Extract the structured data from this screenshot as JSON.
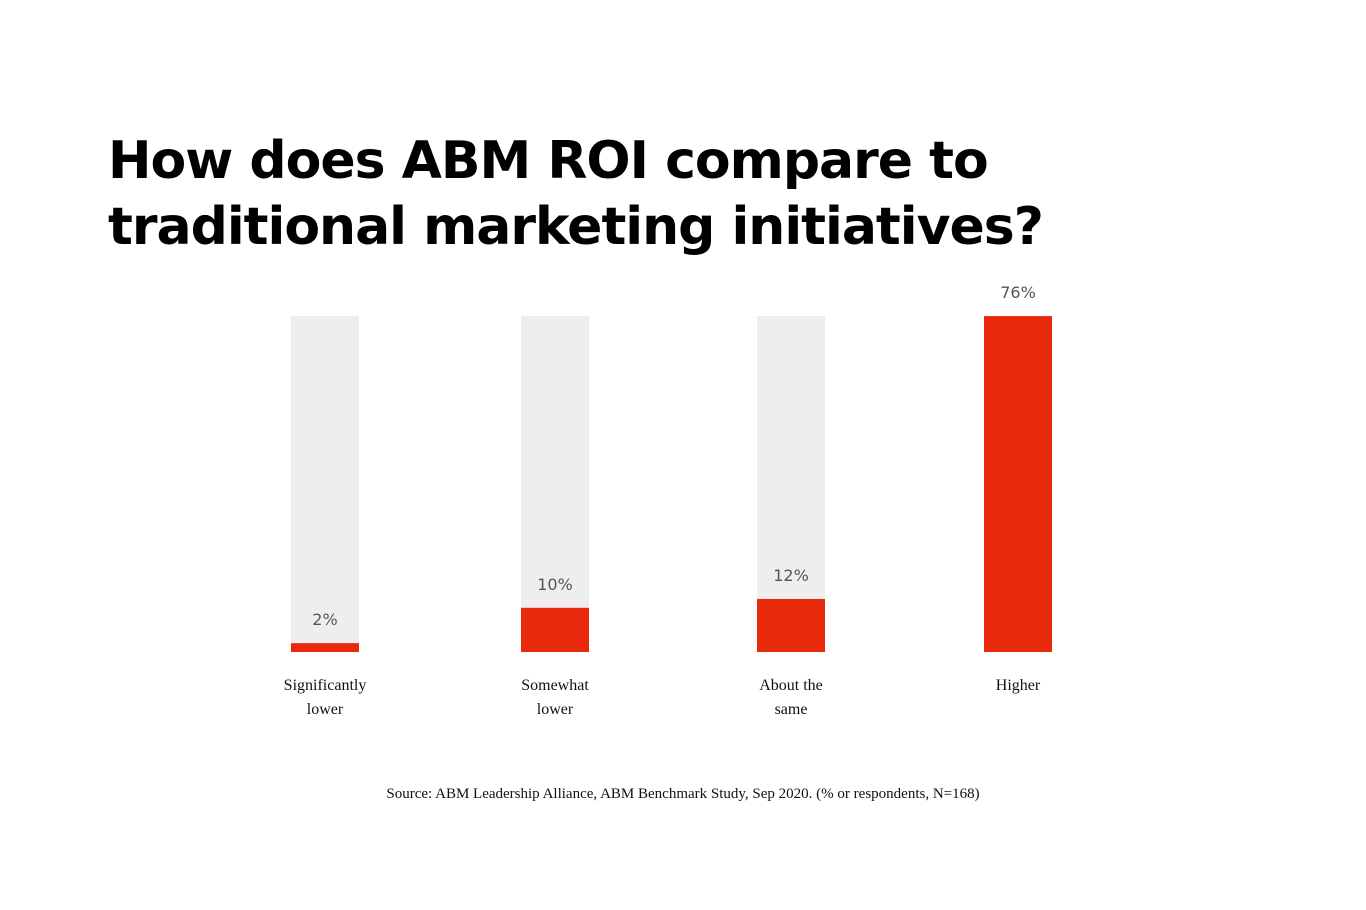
{
  "colors": {
    "bar_fill": "#e8290c",
    "track_fill": "#eeeeee",
    "value_label": "#555555",
    "text": "#111111"
  },
  "chart_data": {
    "type": "bar",
    "title_lines": [
      "How does ABM ROI compare to",
      "traditional marketing initiatives?"
    ],
    "categories": [
      [
        "Significantly",
        "lower"
      ],
      [
        "Somewhat",
        "lower"
      ],
      [
        "About the",
        "same"
      ],
      [
        "Higher"
      ]
    ],
    "values": [
      2,
      10,
      12,
      76
    ],
    "value_labels": [
      "2%",
      "10%",
      "12%",
      "76%"
    ],
    "unit": "%",
    "ylim": [
      0,
      100
    ],
    "grid": false,
    "legend": "none",
    "source": "Source: ABM Leadership Alliance, ABM Benchmark Study, Sep 2020. (% or respondents, N=168)"
  }
}
